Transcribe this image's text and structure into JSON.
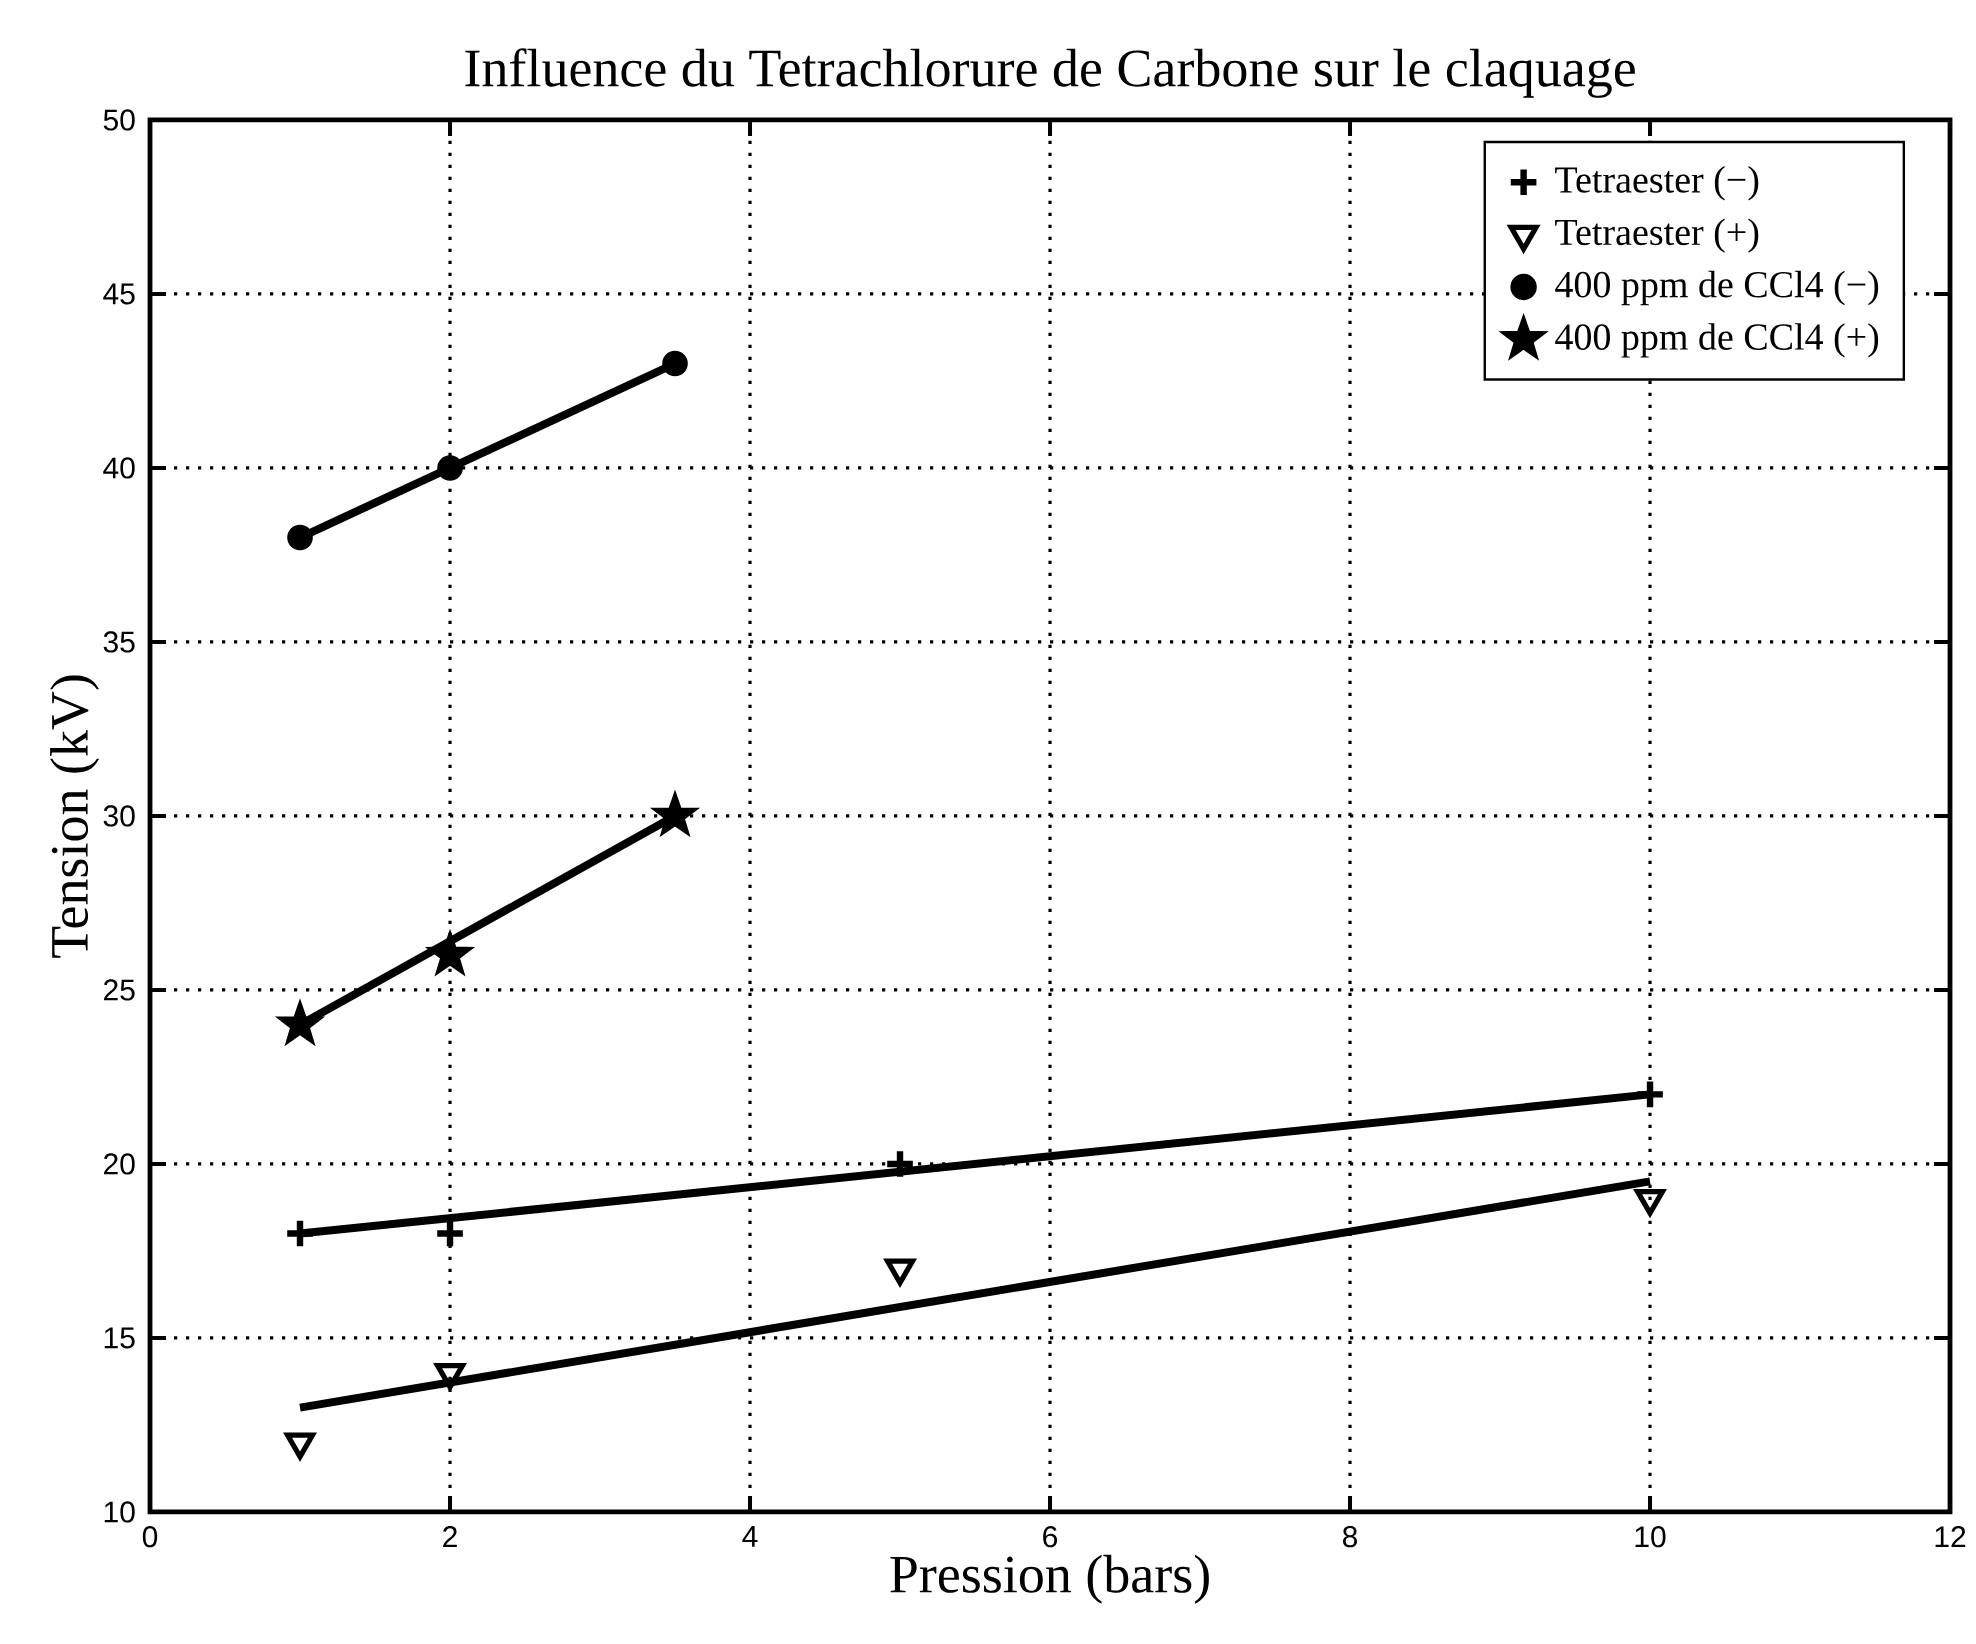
{
  "chart_data": {
    "type": "scatter",
    "title": "Influence du Tetrachlorure de Carbone sur le claquage",
    "xlabel": "Pression (bars)",
    "ylabel": "Tension (kV)",
    "xlim": [
      0,
      12
    ],
    "ylim": [
      10,
      50
    ],
    "xticks": [
      0,
      2,
      4,
      6,
      8,
      10,
      12
    ],
    "yticks": [
      10,
      15,
      20,
      25,
      30,
      35,
      40,
      45,
      50
    ],
    "grid": true,
    "legend": "top right",
    "series": [
      {
        "name": "Tetraester (−)",
        "marker": "cross",
        "color": "#000000",
        "x": [
          1,
          2,
          5,
          10
        ],
        "values": [
          18,
          18,
          20,
          22
        ]
      },
      {
        "name": "Tetraester (+)",
        "marker": "triangle",
        "color": "#000000",
        "x": [
          1,
          2,
          5,
          10
        ],
        "values": [
          12,
          14,
          17,
          19
        ]
      },
      {
        "name": "400 ppm de CCl4 (−)",
        "marker": "circle",
        "color": "#000000",
        "x": [
          1,
          2,
          3.5
        ],
        "values": [
          38,
          40,
          43
        ]
      },
      {
        "name": "400 ppm de CCl4 (+)",
        "marker": "star",
        "color": "#000000",
        "x": [
          1,
          2,
          3.5
        ],
        "values": [
          24,
          26,
          30
        ]
      },
      {
        "type": "line",
        "marker": "none",
        "line_style": "solid",
        "color": "#000000",
        "x": [
          1,
          10
        ],
        "values": [
          18,
          22
        ]
      },
      {
        "type": "line",
        "marker": "none",
        "line_style": "solid",
        "color": "#000000",
        "x": [
          1,
          10
        ],
        "values": [
          13,
          19.5
        ]
      },
      {
        "type": "line",
        "marker": "none",
        "line_style": "solid",
        "color": "#000000",
        "x": [
          1,
          3.5
        ],
        "values": [
          38,
          43
        ]
      },
      {
        "type": "line",
        "marker": "none",
        "line_style": "solid",
        "color": "#000000",
        "x": [
          1,
          3.5
        ],
        "values": [
          24,
          30
        ]
      }
    ]
  }
}
